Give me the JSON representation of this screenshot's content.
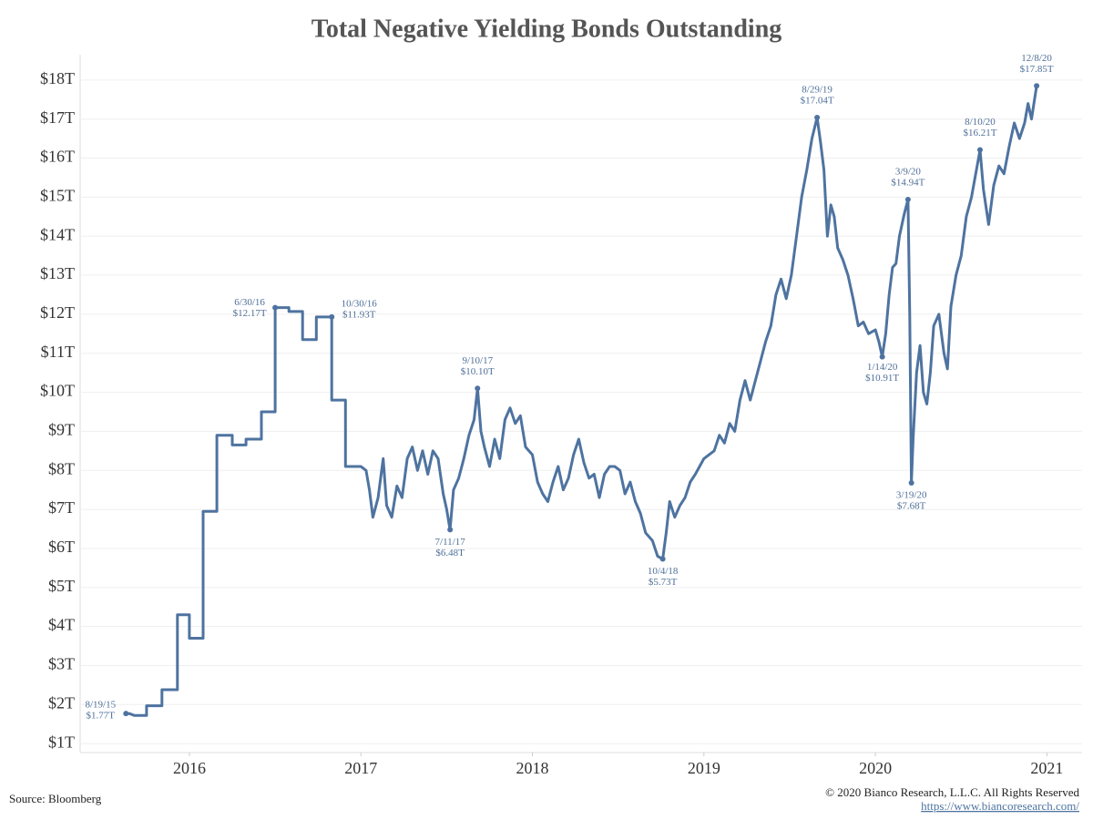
{
  "chart_data": {
    "type": "line",
    "title": "Total Negative Yielding Bonds Outstanding",
    "source": "Source: Bloomberg",
    "copyright": "© 2020 Bianco Research, L.L.C. All Rights Reserved",
    "url": "https://www.biancoresearch.com/",
    "xlim": [
      2015.363,
      2021.205
    ],
    "xticks": [
      2016,
      2017,
      2018,
      2019,
      2020,
      2021
    ],
    "ylim": [
      0.77,
      18.65
    ],
    "yticks": [
      {
        "value": 1,
        "label": "$1T"
      },
      {
        "value": 2,
        "label": "$2T"
      },
      {
        "value": 3,
        "label": "$3T"
      },
      {
        "value": 4,
        "label": "$4T"
      },
      {
        "value": 5,
        "label": "$5T"
      },
      {
        "value": 6,
        "label": "$6T"
      },
      {
        "value": 7,
        "label": "$7T"
      },
      {
        "value": 8,
        "label": "$8T"
      },
      {
        "value": 9,
        "label": "$9T"
      },
      {
        "value": 10,
        "label": "$10T"
      },
      {
        "value": 11,
        "label": "$11T"
      },
      {
        "value": 12,
        "label": "$12T"
      },
      {
        "value": 13,
        "label": "$13T"
      },
      {
        "value": 14,
        "label": "$14T"
      },
      {
        "value": 15,
        "label": "$15T"
      },
      {
        "value": 16,
        "label": "$16T"
      },
      {
        "value": 17,
        "label": "$17T"
      },
      {
        "value": 18,
        "label": "$18T"
      }
    ],
    "grid": true,
    "series": [
      {
        "color": "#4e73a0",
        "x": [
          2015.63,
          2015.65,
          2015.68,
          2015.75,
          2015.75,
          2015.84,
          2015.84,
          2015.93,
          2015.93,
          2016.0,
          2016.0,
          2016.08,
          2016.08,
          2016.16,
          2016.16,
          2016.25,
          2016.25,
          2016.33,
          2016.33,
          2016.42,
          2016.42,
          2016.5,
          2016.5,
          2016.58,
          2016.58,
          2016.66,
          2016.66,
          2016.74,
          2016.74,
          2016.83,
          2016.83,
          2016.91,
          2016.91,
          2017.0,
          2017.03,
          2017.05,
          2017.07,
          2017.1,
          2017.13,
          2017.15,
          2017.18,
          2017.21,
          2017.24,
          2017.27,
          2017.3,
          2017.33,
          2017.36,
          2017.39,
          2017.42,
          2017.45,
          2017.48,
          2017.5,
          2017.52,
          2017.54,
          2017.57,
          2017.6,
          2017.63,
          2017.66,
          2017.68,
          2017.7,
          2017.72,
          2017.75,
          2017.78,
          2017.81,
          2017.84,
          2017.87,
          2017.9,
          2017.93,
          2017.96,
          2018.0,
          2018.03,
          2018.06,
          2018.09,
          2018.12,
          2018.15,
          2018.18,
          2018.21,
          2018.24,
          2018.27,
          2018.3,
          2018.33,
          2018.36,
          2018.39,
          2018.42,
          2018.45,
          2018.48,
          2018.51,
          2018.54,
          2018.57,
          2018.6,
          2018.63,
          2018.66,
          2018.7,
          2018.73,
          2018.76,
          2018.78,
          2018.8,
          2018.83,
          2018.86,
          2018.89,
          2018.92,
          2018.95,
          2019.0,
          2019.03,
          2019.06,
          2019.09,
          2019.12,
          2019.15,
          2019.18,
          2019.21,
          2019.24,
          2019.27,
          2019.3,
          2019.33,
          2019.36,
          2019.39,
          2019.42,
          2019.45,
          2019.48,
          2019.51,
          2019.54,
          2019.57,
          2019.6,
          2019.63,
          2019.66,
          2019.68,
          2019.7,
          2019.72,
          2019.74,
          2019.76,
          2019.78,
          2019.81,
          2019.84,
          2019.87,
          2019.9,
          2019.93,
          2019.96,
          2020.0,
          2020.02,
          2020.04,
          2020.06,
          2020.08,
          2020.1,
          2020.12,
          2020.14,
          2020.16,
          2020.17,
          2020.19,
          2020.2,
          2020.21,
          2020.22,
          2020.24,
          2020.26,
          2020.28,
          2020.3,
          2020.32,
          2020.34,
          2020.37,
          2020.4,
          2020.42,
          2020.44,
          2020.47,
          2020.5,
          2020.53,
          2020.56,
          2020.61,
          2020.63,
          2020.66,
          2020.69,
          2020.72,
          2020.75,
          2020.78,
          2020.81,
          2020.84,
          2020.87,
          2020.89,
          2020.91,
          2020.94
        ],
        "values": [
          1.77,
          1.77,
          1.72,
          1.72,
          1.97,
          1.97,
          2.38,
          2.38,
          4.3,
          4.3,
          3.7,
          3.7,
          6.95,
          6.95,
          8.9,
          8.9,
          8.65,
          8.65,
          8.8,
          8.8,
          9.5,
          9.5,
          12.17,
          12.17,
          12.07,
          12.07,
          11.35,
          11.35,
          11.93,
          11.93,
          9.8,
          9.8,
          8.1,
          8.1,
          8.0,
          7.5,
          6.8,
          7.3,
          8.3,
          7.1,
          6.8,
          7.6,
          7.3,
          8.3,
          8.6,
          8.0,
          8.5,
          7.9,
          8.5,
          8.3,
          7.4,
          7.0,
          6.48,
          7.5,
          7.8,
          8.3,
          8.9,
          9.3,
          10.1,
          9.0,
          8.6,
          8.1,
          8.8,
          8.3,
          9.3,
          9.6,
          9.2,
          9.4,
          8.6,
          8.4,
          7.7,
          7.4,
          7.2,
          7.7,
          8.1,
          7.5,
          7.8,
          8.4,
          8.8,
          8.2,
          7.8,
          7.9,
          7.3,
          7.9,
          8.1,
          8.1,
          8.0,
          7.4,
          7.7,
          7.2,
          6.9,
          6.4,
          6.2,
          5.8,
          5.73,
          6.4,
          7.2,
          6.8,
          7.1,
          7.3,
          7.7,
          7.9,
          8.3,
          8.4,
          8.5,
          8.9,
          8.7,
          9.2,
          9.0,
          9.8,
          10.3,
          9.8,
          10.3,
          10.8,
          11.3,
          11.7,
          12.5,
          12.9,
          12.4,
          13.0,
          14.0,
          15.0,
          15.7,
          16.5,
          17.04,
          16.4,
          15.7,
          14.0,
          14.8,
          14.5,
          13.7,
          13.4,
          13.0,
          12.4,
          11.7,
          11.8,
          11.5,
          11.6,
          11.3,
          10.91,
          11.5,
          12.5,
          13.2,
          13.3,
          14.0,
          14.4,
          14.6,
          14.94,
          12.0,
          7.68,
          8.8,
          10.5,
          11.2,
          10.0,
          9.7,
          10.5,
          11.7,
          12.0,
          11.0,
          10.6,
          12.2,
          13.0,
          13.5,
          14.5,
          15.0,
          16.21,
          15.2,
          14.3,
          15.3,
          15.8,
          15.6,
          16.3,
          16.9,
          16.5,
          16.9,
          17.4,
          17.0,
          17.85
        ]
      }
    ],
    "annotations": [
      {
        "date": "8/19/15",
        "label": "$1.77T",
        "x": 2015.63,
        "value": 1.77
      },
      {
        "date": "6/30/16",
        "label": "$12.17T",
        "x": 2016.5,
        "value": 12.17
      },
      {
        "date": "10/30/16",
        "label": "$11.93T",
        "x": 2016.83,
        "value": 11.93
      },
      {
        "date": "9/10/17",
        "label": "$10.10T",
        "x": 2017.68,
        "value": 10.1
      },
      {
        "date": "7/11/17",
        "label": "$6.48T",
        "x": 2017.52,
        "value": 6.48
      },
      {
        "date": "10/4/18",
        "label": "$5.73T",
        "x": 2018.76,
        "value": 5.73
      },
      {
        "date": "8/29/19",
        "label": "$17.04T",
        "x": 2019.66,
        "value": 17.04
      },
      {
        "date": "1/14/20",
        "label": "$10.91T",
        "x": 2020.04,
        "value": 10.91
      },
      {
        "date": "3/9/20",
        "label": "$14.94T",
        "x": 2020.19,
        "value": 14.94
      },
      {
        "date": "3/19/20",
        "label": "$7.68T",
        "x": 2020.21,
        "value": 7.68
      },
      {
        "date": "8/10/20",
        "label": "$16.21T",
        "x": 2020.61,
        "value": 16.21
      },
      {
        "date": "12/8/20",
        "label": "$17.85T",
        "x": 2020.94,
        "value": 17.85
      }
    ]
  }
}
